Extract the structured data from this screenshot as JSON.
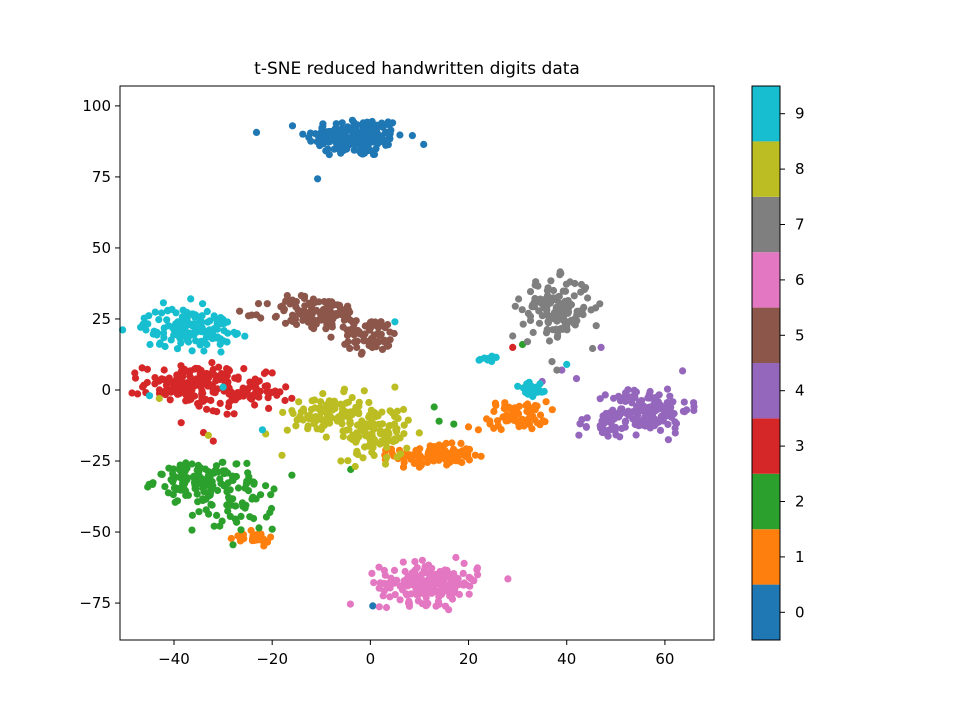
{
  "chart_data": {
    "type": "scatter",
    "title": "t-SNE reduced handwritten digits data",
    "xlabel": "",
    "ylabel": "",
    "xlim": [
      -51,
      70
    ],
    "ylim": [
      -88,
      107
    ],
    "xticks": [
      -40,
      -20,
      0,
      20,
      40,
      60
    ],
    "xtick_labels": [
      "−40",
      "−20",
      "0",
      "20",
      "40",
      "60"
    ],
    "yticks": [
      -75,
      -50,
      -25,
      0,
      25,
      50,
      75,
      100
    ],
    "ytick_labels": [
      "−75",
      "−50",
      "−25",
      "0",
      "25",
      "50",
      "75",
      "100"
    ],
    "grid": false,
    "colorbar": {
      "labels": [
        "0",
        "1",
        "2",
        "3",
        "4",
        "5",
        "6",
        "7",
        "8",
        "9"
      ],
      "colors": [
        "#1f77b4",
        "#ff7f0e",
        "#2ca02c",
        "#d62728",
        "#9467bd",
        "#8c564b",
        "#e377c2",
        "#7f7f7f",
        "#bcbd22",
        "#17becf"
      ]
    },
    "series": [
      {
        "name": "0",
        "color": "#1f77b4",
        "clusters": [
          {
            "cx": -3,
            "cy": 89,
            "sx": 5,
            "sy": 3.5,
            "n": 180
          }
        ],
        "points": [
          [
            0.5,
            -76
          ]
        ]
      },
      {
        "name": "1",
        "color": "#ff7f0e",
        "clusters": [
          {
            "cx": 13,
            "cy": -23,
            "sx": 4,
            "sy": 1.8,
            "n": 130
          },
          {
            "cx": 30,
            "cy": -9,
            "sx": 3,
            "sy": 2.5,
            "n": 70
          },
          {
            "cx": -24,
            "cy": -52,
            "sx": 2.5,
            "sy": 1,
            "n": 25
          }
        ],
        "points": [
          [
            22,
            -14
          ],
          [
            20,
            -13
          ]
        ]
      },
      {
        "name": "2",
        "color": "#2ca02c",
        "clusters": [
          {
            "cx": -36,
            "cy": -32,
            "sx": 4,
            "sy": 3,
            "n": 100
          },
          {
            "cx": -28,
            "cy": -38,
            "sx": 4,
            "sy": 6,
            "n": 80
          }
        ],
        "points": [
          [
            13,
            -6
          ],
          [
            14,
            -11
          ],
          [
            17,
            -12
          ],
          [
            -4,
            -28
          ],
          [
            31,
            16
          ],
          [
            -20,
            -49
          ]
        ]
      },
      {
        "name": "3",
        "color": "#d62728",
        "clusters": [
          {
            "cx": -36,
            "cy": 2,
            "sx": 5,
            "sy": 3.5,
            "n": 150
          },
          {
            "cx": -25,
            "cy": -1,
            "sx": 4,
            "sy": 3,
            "n": 60
          }
        ],
        "points": [
          [
            -34,
            -15
          ],
          [
            -32,
            -18
          ],
          [
            29,
            15
          ],
          [
            -20,
            6
          ]
        ]
      },
      {
        "name": "4",
        "color": "#9467bd",
        "clusters": [
          {
            "cx": 57,
            "cy": -7,
            "sx": 4,
            "sy": 4,
            "n": 130
          },
          {
            "cx": 48,
            "cy": -12,
            "sx": 3,
            "sy": 2.5,
            "n": 40
          }
        ],
        "points": [
          [
            39,
            7
          ],
          [
            42,
            4
          ],
          [
            47,
            15
          ],
          [
            35,
            3
          ],
          [
            52,
            -1
          ]
        ]
      },
      {
        "name": "5",
        "color": "#8c564b",
        "clusters": [
          {
            "cx": -11,
            "cy": 27,
            "sx": 5,
            "sy": 3,
            "n": 120
          },
          {
            "cx": 0,
            "cy": 19,
            "sx": 3,
            "sy": 3,
            "n": 60
          }
        ],
        "points": [
          [
            17,
            -66
          ]
        ]
      },
      {
        "name": "6",
        "color": "#e377c2",
        "clusters": [
          {
            "cx": 12,
            "cy": -68,
            "sx": 5,
            "sy": 3.5,
            "n": 190
          }
        ],
        "points": []
      },
      {
        "name": "7",
        "color": "#7f7f7f",
        "clusters": [
          {
            "cx": 38,
            "cy": 29,
            "sx": 3.5,
            "sy": 5,
            "n": 140
          }
        ],
        "points": [
          [
            29,
            19
          ],
          [
            32,
            17
          ],
          [
            37,
            10
          ],
          [
            38,
            7
          ]
        ]
      },
      {
        "name": "8",
        "color": "#bcbd22",
        "clusters": [
          {
            "cx": -8,
            "cy": -9,
            "sx": 4.5,
            "sy": 3.5,
            "n": 110
          },
          {
            "cx": 1,
            "cy": -15,
            "sx": 3.5,
            "sy": 4.5,
            "n": 100
          }
        ],
        "points": [
          [
            -33,
            -16
          ],
          [
            -43,
            -3
          ],
          [
            -18,
            -23
          ],
          [
            5,
            1
          ],
          [
            -6,
            -25
          ]
        ]
      },
      {
        "name": "9",
        "color": "#17becf",
        "clusters": [
          {
            "cx": -37,
            "cy": 22,
            "sx": 4.5,
            "sy": 3.5,
            "n": 140
          },
          {
            "cx": 33,
            "cy": 0,
            "sx": 1.5,
            "sy": 2,
            "n": 25
          },
          {
            "cx": 24,
            "cy": 11,
            "sx": 1.5,
            "sy": 0.8,
            "n": 10
          }
        ],
        "points": [
          [
            5,
            24
          ],
          [
            -22,
            -14
          ],
          [
            -30,
            1
          ],
          [
            40,
            9
          ],
          [
            -45,
            -2
          ]
        ]
      }
    ]
  }
}
